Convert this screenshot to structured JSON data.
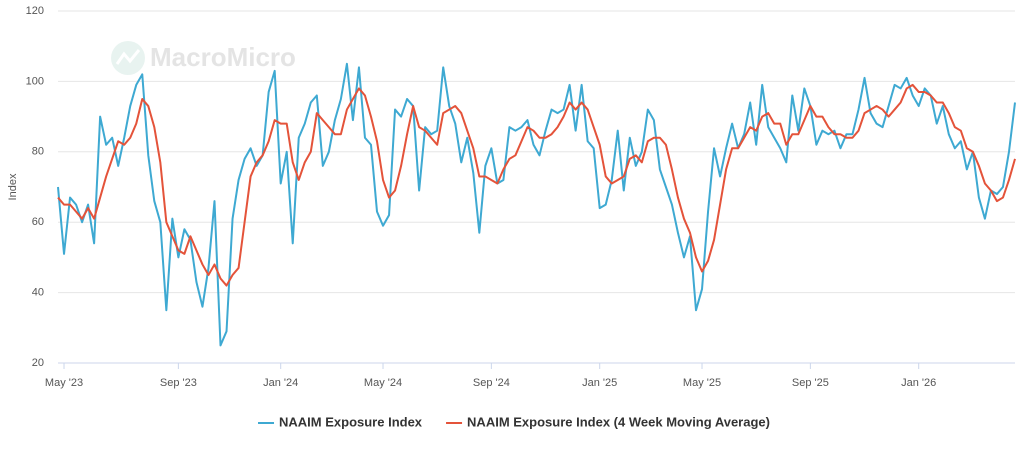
{
  "chart_data": {
    "type": "line",
    "watermark": "MacroMicro",
    "y_label": "Index",
    "ylim": [
      20,
      120
    ],
    "yticks": [
      20,
      40,
      60,
      80,
      100,
      120
    ],
    "grid": true,
    "legend": "bottom",
    "categories": [
      null,
      "May '23",
      null,
      null,
      null,
      null,
      null,
      null,
      null,
      null,
      null,
      null,
      null,
      null,
      null,
      null,
      null,
      null,
      null,
      null,
      "Sep '23",
      null,
      null,
      null,
      null,
      null,
      null,
      null,
      null,
      null,
      null,
      null,
      null,
      null,
      null,
      null,
      null,
      "Jan '24",
      null,
      null,
      null,
      null,
      null,
      null,
      null,
      null,
      null,
      null,
      null,
      null,
      null,
      null,
      null,
      null,
      "May '24",
      null,
      null,
      null,
      null,
      null,
      null,
      null,
      null,
      null,
      null,
      null,
      null,
      null,
      null,
      null,
      null,
      null,
      "Sep '24",
      null,
      null,
      null,
      null,
      null,
      null,
      null,
      null,
      null,
      null,
      null,
      null,
      null,
      null,
      null,
      null,
      null,
      "Jan '25",
      null,
      null,
      null,
      null,
      null,
      null,
      null,
      null,
      null,
      null,
      null,
      null,
      null,
      null,
      null,
      null,
      "May '25",
      null,
      null,
      null,
      null,
      null,
      null,
      null,
      null,
      null,
      null,
      null,
      null,
      null,
      null,
      null,
      null,
      null,
      "Sep '25",
      null,
      null,
      null,
      null,
      null,
      null,
      null,
      null,
      null,
      null,
      null,
      null,
      null,
      null,
      null,
      null,
      null,
      "Jan '26",
      null,
      null,
      null,
      null,
      null,
      null,
      null,
      null,
      null,
      null,
      null,
      null,
      null,
      null,
      null,
      null
    ],
    "series": [
      {
        "name": "NAAIM Exposure Index",
        "color": "#3ea9d2",
        "values": [
          70,
          51,
          67,
          65,
          60,
          65,
          54,
          90,
          82,
          84,
          76,
          84,
          93,
          99,
          102,
          79,
          66,
          60,
          35,
          61,
          50,
          58,
          55,
          43,
          36,
          47,
          66,
          25,
          29,
          61,
          72,
          78,
          81,
          76,
          79,
          97,
          103,
          71,
          80,
          54,
          84,
          88,
          94,
          96,
          76,
          80,
          89,
          95,
          105,
          89,
          104,
          84,
          82,
          63,
          59,
          62,
          92,
          90,
          95,
          93,
          69,
          87,
          85,
          86,
          104,
          93,
          88,
          77,
          84,
          74,
          57,
          76,
          81,
          71,
          72,
          87,
          86,
          87,
          89,
          82,
          79,
          86,
          92,
          91,
          92,
          99,
          86,
          99,
          83,
          81,
          64,
          65,
          72,
          86,
          69,
          84,
          76,
          80,
          92,
          89,
          75,
          70,
          65,
          57,
          50,
          56,
          35,
          41,
          63,
          81,
          73,
          81,
          88,
          81,
          85,
          94,
          82,
          99,
          87,
          84,
          81,
          77,
          96,
          86,
          98,
          93,
          82,
          86,
          85,
          86,
          81,
          85,
          85,
          92,
          101,
          91,
          88,
          87,
          93,
          99,
          98,
          101,
          96,
          93,
          98,
          96,
          88,
          93,
          85,
          81,
          83,
          75,
          80,
          67,
          61,
          69,
          68,
          70,
          80,
          94
        ]
      },
      {
        "name": "NAAIM Exposure Index (4 Week Moving Average)",
        "color": "#e4533a",
        "values": [
          67,
          65,
          65,
          63,
          61,
          64,
          61,
          67,
          73,
          78,
          83,
          82,
          84,
          88,
          95,
          93,
          87,
          77,
          60,
          56,
          52,
          51,
          56,
          52,
          48,
          45,
          48,
          44,
          42,
          45,
          47,
          60,
          73,
          77,
          79,
          83,
          89,
          88,
          88,
          77,
          72,
          77,
          80,
          91,
          89,
          87,
          85,
          85,
          92,
          95,
          98,
          96,
          90,
          83,
          72,
          67,
          69,
          76,
          85,
          93,
          87,
          86,
          84,
          82,
          91,
          92,
          93,
          91,
          86,
          81,
          73,
          73,
          72,
          71,
          75,
          78,
          79,
          83,
          87,
          86,
          84,
          84,
          85,
          87,
          90,
          94,
          92,
          94,
          92,
          87,
          82,
          73,
          71,
          72,
          73,
          78,
          79,
          77,
          83,
          84,
          84,
          82,
          75,
          67,
          61,
          57,
          50,
          46,
          49,
          55,
          65,
          75,
          81,
          81,
          84,
          87,
          86,
          90,
          91,
          88,
          88,
          82,
          85,
          85,
          89,
          93,
          90,
          90,
          87,
          85,
          85,
          84,
          84,
          86,
          91,
          92,
          93,
          92,
          90,
          92,
          94,
          98,
          99,
          97,
          97,
          96,
          94,
          94,
          91,
          87,
          86,
          81,
          80,
          76,
          71,
          69,
          66,
          67,
          72,
          78
        ]
      }
    ]
  }
}
